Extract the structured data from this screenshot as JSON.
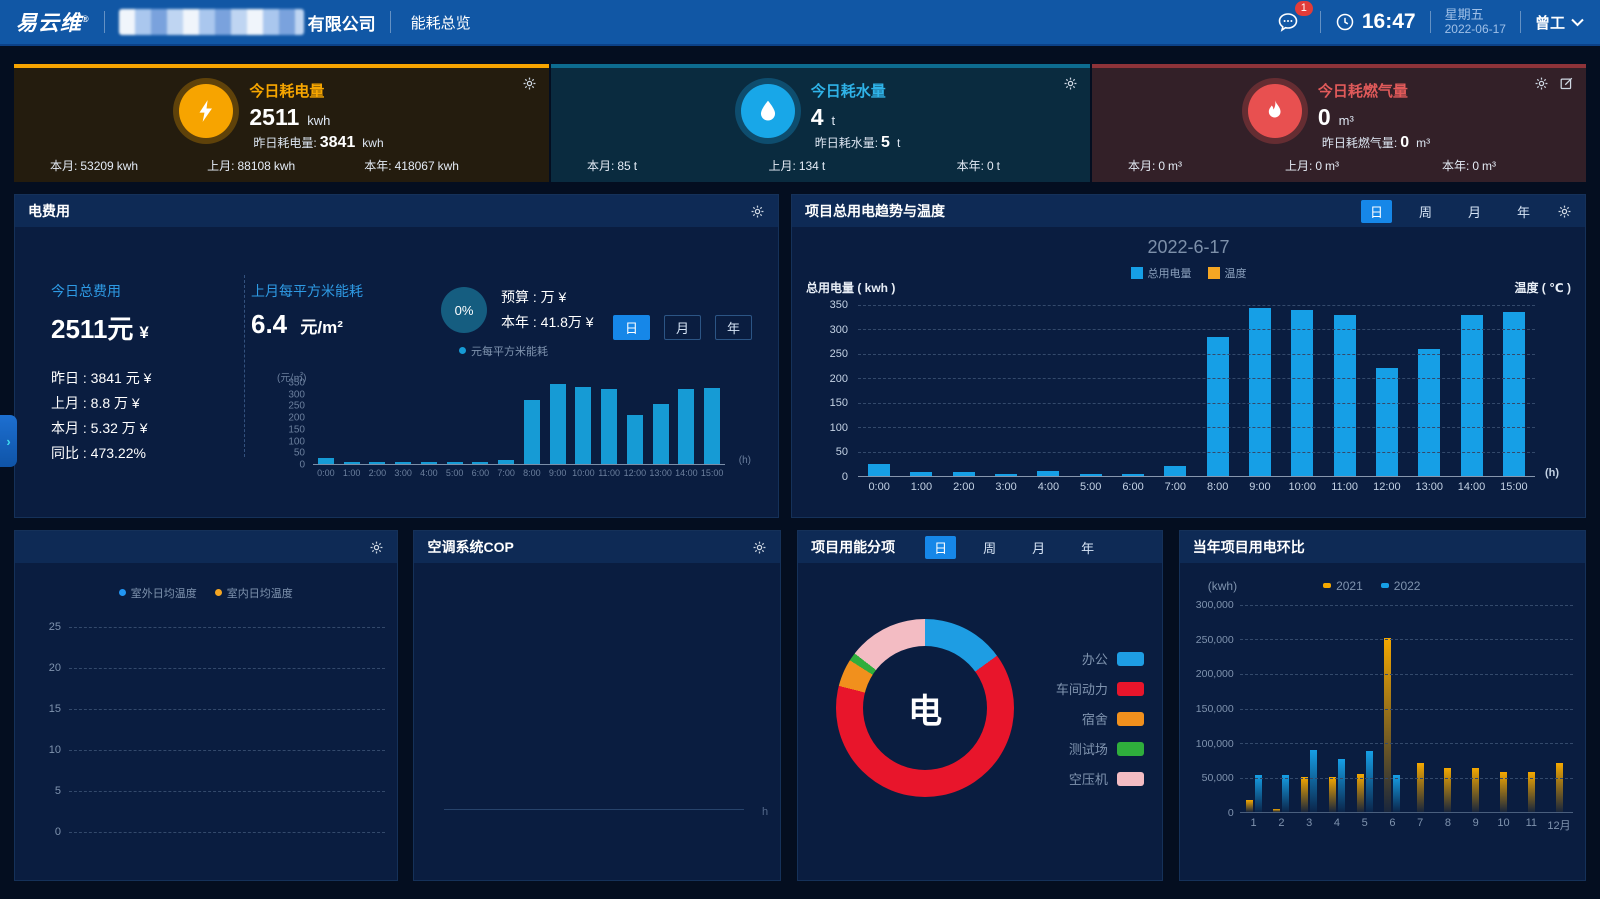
{
  "navbar": {
    "logo": "易云维",
    "logo_reg": "®",
    "company_suffix": "有限公司",
    "nav_tab": "能耗总览",
    "badge": "1",
    "time": "16:47",
    "weekday": "星期五",
    "date": "2022-06-17",
    "user": "曾工"
  },
  "kpi_cards": [
    {
      "title": "今日耗电量",
      "value": "2511",
      "unit": "kwh",
      "yesterday_label": "昨日耗电量:",
      "yesterday_value": "3841",
      "yesterday_unit": "kwh",
      "stats": [
        {
          "label": "本月:",
          "value": "53209",
          "unit": "kwh"
        },
        {
          "label": "上月:",
          "value": "88108",
          "unit": "kwh"
        },
        {
          "label": "本年:",
          "value": "418067",
          "unit": "kwh"
        }
      ]
    },
    {
      "title": "今日耗水量",
      "value": "4",
      "unit": "t",
      "yesterday_label": "昨日耗水量:",
      "yesterday_value": "5",
      "yesterday_unit": "t",
      "stats": [
        {
          "label": "本月:",
          "value": "85",
          "unit": "t"
        },
        {
          "label": "上月:",
          "value": "134",
          "unit": "t"
        },
        {
          "label": "本年:",
          "value": "0",
          "unit": "t"
        }
      ]
    },
    {
      "title": "今日耗燃气量",
      "value": "0",
      "unit": "m³",
      "yesterday_label": "昨日耗燃气量:",
      "yesterday_value": "0",
      "yesterday_unit": "m³",
      "stats": [
        {
          "label": "本月:",
          "value": "0",
          "unit": "m³"
        },
        {
          "label": "上月:",
          "value": "0",
          "unit": "m³"
        },
        {
          "label": "本年:",
          "value": "0",
          "unit": "m³"
        }
      ]
    }
  ],
  "fee_panel": {
    "title": "电费用",
    "today_label": "今日总费用",
    "today_value": "2511元",
    "today_unit": "¥",
    "rows": [
      "昨日 : 3841 元 ¥",
      "上月 : 8.8 万 ¥",
      "本月 : 5.32 万 ¥",
      "同比 : 473.22%"
    ],
    "sqm_label": "上月每平方米能耗",
    "sqm_value": "6.4",
    "sqm_unit": "元/m²",
    "budget_pct": "0%",
    "budget_line": "预算 : 万 ¥",
    "year_line": "本年 : 41.8万 ¥",
    "tabs": [
      "日",
      "月",
      "年"
    ],
    "active_tab": "日",
    "legend": "元每平方米能耗"
  },
  "trend_panel": {
    "title": "项目总用电趋势与温度",
    "tabs": [
      "日",
      "周",
      "月",
      "年"
    ],
    "active_tab": "日"
  },
  "temp_panel": {
    "legend": [
      "室外日均温度",
      "室内日均温度"
    ],
    "legend_colors": [
      "#2196f3",
      "#f5a623"
    ]
  },
  "cop_panel": {
    "title": "空调系统COP",
    "xlabel": "h"
  },
  "breakdown_panel": {
    "title": "项目用能分项",
    "tabs": [
      "日",
      "周",
      "月",
      "年"
    ],
    "active_tab": "日"
  },
  "yoy_panel": {
    "title": "当年项目用电环比"
  },
  "accent_colors": {
    "active_tab": "#1687e8",
    "bar_blue": "#169fe6",
    "bar_orange": "#f5a800"
  },
  "chart_data": [
    {
      "id": "fee-trend",
      "type": "bar",
      "title": "",
      "ylabel": "(元/㎡)",
      "xlabel": "(h)",
      "ylim": [
        0,
        350
      ],
      "yticks": [
        350,
        300,
        250,
        200,
        150,
        100,
        50,
        0
      ],
      "categories": [
        "0:00",
        "1:00",
        "2:00",
        "3:00",
        "4:00",
        "5:00",
        "6:00",
        "7:00",
        "8:00",
        "9:00",
        "10:00",
        "11:00",
        "12:00",
        "13:00",
        "14:00",
        "15:00"
      ],
      "series": [
        {
          "name": "元每平方米能耗",
          "color": "#169bd5",
          "values": [
            25,
            8,
            8,
            5,
            10,
            5,
            5,
            18,
            275,
            340,
            330,
            320,
            210,
            255,
            320,
            325
          ]
        }
      ]
    },
    {
      "id": "power-trend",
      "type": "bar",
      "title": "2022-6-17",
      "ylabel": "总用电量 ( kwh )",
      "ylabel_right": "温度 ( ℃ )",
      "xlabel": "(h)",
      "ylim": [
        0,
        350
      ],
      "yticks": [
        350,
        300,
        250,
        200,
        150,
        100,
        50,
        0
      ],
      "grid": true,
      "categories": [
        "0:00",
        "1:00",
        "2:00",
        "3:00",
        "4:00",
        "5:00",
        "6:00",
        "7:00",
        "8:00",
        "9:00",
        "10:00",
        "11:00",
        "12:00",
        "13:00",
        "14:00",
        "15:00"
      ],
      "series": [
        {
          "name": "总用电量",
          "color": "#169fe6",
          "values": [
            25,
            8,
            8,
            5,
            10,
            5,
            4,
            20,
            283,
            342,
            337,
            328,
            220,
            258,
            328,
            333
          ]
        },
        {
          "name": "温度",
          "color": "#f5a623",
          "values": []
        }
      ]
    },
    {
      "id": "temperature",
      "type": "line",
      "ylim": [
        0,
        25
      ],
      "yticks": [
        25,
        20,
        15,
        10,
        5,
        0
      ],
      "grid": true,
      "series": [
        {
          "name": "室外日均温度",
          "color": "#2196f3",
          "values": []
        },
        {
          "name": "室内日均温度",
          "color": "#f5a623",
          "values": []
        }
      ]
    },
    {
      "id": "cop",
      "type": "line",
      "xlabel": "h",
      "series": []
    },
    {
      "id": "energy-breakdown",
      "type": "pie",
      "center_label": "电",
      "segments": [
        {
          "name": "办公",
          "color": "#1e9de3",
          "value": 15
        },
        {
          "name": "车间动力",
          "color": "#e8152b",
          "value": 64
        },
        {
          "name": "宿舍",
          "color": "#f1901d",
          "value": 5
        },
        {
          "name": "测试场",
          "color": "#2fae3c",
          "value": 1.5
        },
        {
          "name": "空压机",
          "color": "#f3bcc3",
          "value": 14.5
        }
      ]
    },
    {
      "id": "yoy",
      "type": "bar",
      "ylabel": "(kwh)",
      "ylim": [
        0,
        300000
      ],
      "yticks": [
        "300,000",
        "250,000",
        "200,000",
        "150,000",
        "100,000",
        "50,000",
        "0"
      ],
      "grid": true,
      "categories": [
        "1",
        "2",
        "3",
        "4",
        "5",
        "6",
        "7",
        "8",
        "9",
        "10",
        "11",
        "12月"
      ],
      "series": [
        {
          "name": "2021",
          "color": "#f5a800",
          "values": [
            18000,
            5000,
            50000,
            50000,
            55000,
            251000,
            70000,
            63000,
            63000,
            57000,
            57000,
            70000
          ]
        },
        {
          "name": "2022",
          "color": "#169fe6",
          "values": [
            53000,
            54000,
            90000,
            77000,
            88000,
            53000,
            null,
            null,
            null,
            null,
            null,
            null
          ]
        }
      ]
    }
  ]
}
